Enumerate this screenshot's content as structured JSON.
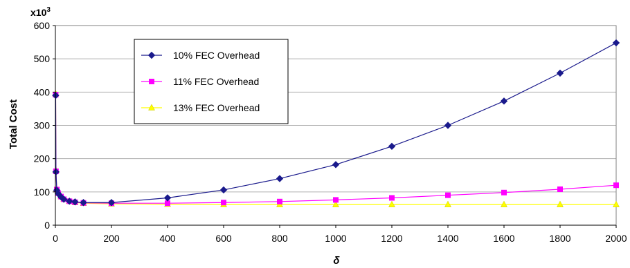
{
  "chart_data": {
    "type": "line",
    "title": "",
    "xlabel": "δ",
    "ylabel": "Total Cost",
    "y_multiplier_label": "x10",
    "y_multiplier_exp": "3",
    "xlim": [
      0,
      2000
    ],
    "ylim": [
      0,
      600
    ],
    "x_ticks": [
      0,
      200,
      400,
      600,
      800,
      1000,
      1200,
      1400,
      1600,
      1800,
      2000
    ],
    "y_ticks": [
      0,
      100,
      200,
      300,
      400,
      500,
      600
    ],
    "x_tick_labels": [
      "0",
      "200",
      "400",
      "600",
      "800",
      "1000",
      "1200",
      "1400",
      "1600",
      "1800",
      "2000"
    ],
    "y_tick_labels": [
      "0",
      "100",
      "200",
      "300",
      "400",
      "500",
      "600"
    ],
    "grid": "horizontal",
    "legend_placement": "top-left",
    "series": [
      {
        "name": "10% FEC Overhead",
        "color": "#1a1a8c",
        "marker": "diamond",
        "x": [
          1,
          2,
          5,
          10,
          20,
          30,
          50,
          70,
          100,
          200,
          400,
          600,
          800,
          1000,
          1200,
          1400,
          1600,
          1800,
          2000
        ],
        "y": [
          390,
          160,
          105,
          95,
          85,
          78,
          72,
          70,
          68,
          68,
          82,
          106,
          140,
          182,
          237,
          300,
          373,
          457,
          548
        ]
      },
      {
        "name": "11% FEC Overhead",
        "color": "#ff00ff",
        "marker": "square",
        "x": [
          1,
          2,
          5,
          10,
          20,
          30,
          50,
          70,
          100,
          200,
          400,
          600,
          800,
          1000,
          1200,
          1400,
          1600,
          1800,
          2000
        ],
        "y": [
          392,
          162,
          107,
          96,
          86,
          78,
          72,
          69,
          67,
          66,
          66,
          68,
          71,
          76,
          82,
          90,
          98,
          108,
          120
        ]
      },
      {
        "name": "13% FEC Overhead",
        "color": "#ffff00",
        "marker": "triangle",
        "x": [
          1,
          2,
          5,
          10,
          20,
          30,
          50,
          70,
          100,
          200,
          400,
          600,
          800,
          1000,
          1200,
          1400,
          1600,
          1800,
          2000
        ],
        "y": [
          395,
          165,
          108,
          97,
          86,
          78,
          72,
          68,
          66,
          64,
          63,
          62,
          62,
          62,
          62,
          62,
          62,
          62,
          62
        ]
      }
    ]
  }
}
